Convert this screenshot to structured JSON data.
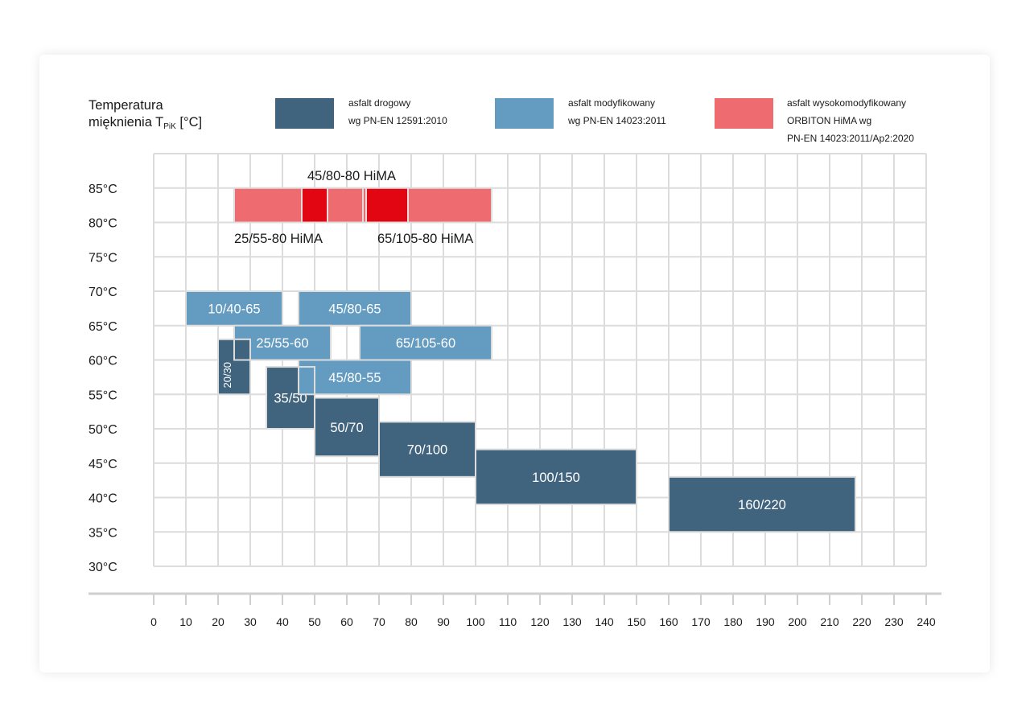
{
  "y_title": {
    "line1": "Temperatura",
    "line2_prefix": "mięknienia T",
    "line2_sub": "PiK",
    "line2_suffix": " [°C]"
  },
  "legend": [
    {
      "color": "#41647e",
      "lines": [
        "asfalt drogowy",
        "wg PN-EN 12591:2010"
      ]
    },
    {
      "color": "#649cc1",
      "lines": [
        "asfalt modyfikowany",
        "wg PN-EN 14023:2011"
      ]
    },
    {
      "color": "#ee6b70",
      "lines": [
        "asfalt wysokomodyfikowany",
        "ORBITON HiMA wg",
        "PN-EN 14023:2011/Ap2:2020"
      ]
    }
  ],
  "chart_data": {
    "type": "range-box",
    "x_ticks": [
      0,
      10,
      20,
      30,
      40,
      50,
      60,
      70,
      80,
      90,
      100,
      110,
      120,
      130,
      140,
      150,
      160,
      170,
      180,
      190,
      200,
      210,
      220,
      230,
      240
    ],
    "y_ticks": [
      "30°C",
      "35°C",
      "40°C",
      "45°C",
      "50°C",
      "55°C",
      "60°C",
      "65°C",
      "70°C",
      "75°C",
      "80°C",
      "85°C"
    ],
    "xlim": [
      0,
      240
    ],
    "ylim": [
      30,
      90
    ],
    "grid": true,
    "boxes": [
      {
        "label": "25/55-80 HiMA (zakres)",
        "text": "",
        "x": [
          25,
          105
        ],
        "y": [
          80,
          85
        ],
        "fill": "#ee6b70"
      },
      {
        "label": "45/80-80 HiMA",
        "text": "",
        "x": [
          46,
          54
        ],
        "y": [
          80,
          85
        ],
        "fill": "#e20613"
      },
      {
        "label": "",
        "text": "",
        "x": [
          54,
          65
        ],
        "y": [
          80,
          85
        ],
        "fill": "#ee6b70"
      },
      {
        "label": "65/105-80 HiMA",
        "text": "",
        "x": [
          66,
          79
        ],
        "y": [
          80,
          85
        ],
        "fill": "#e20613"
      },
      {
        "label": "10/40-65",
        "text": "10/40-65",
        "x": [
          10,
          40
        ],
        "y": [
          65,
          70
        ],
        "fill": "#649cc1"
      },
      {
        "label": "45/80-65",
        "text": "45/80-65",
        "x": [
          45,
          80
        ],
        "y": [
          65,
          70
        ],
        "fill": "#649cc1"
      },
      {
        "label": "25/55-60",
        "text": "25/55-60",
        "x": [
          25,
          55
        ],
        "y": [
          60,
          65
        ],
        "fill": "#649cc1"
      },
      {
        "label": "65/105-60",
        "text": "65/105-60",
        "x": [
          64,
          105
        ],
        "y": [
          60,
          65
        ],
        "fill": "#649cc1"
      },
      {
        "label": "20/30",
        "text": "20/30",
        "x": [
          20,
          30
        ],
        "y": [
          55,
          63
        ],
        "fill": "#41647e",
        "rotated": true
      },
      {
        "label": "20/30 (part)",
        "text": "",
        "x": [
          25,
          30
        ],
        "y": [
          60,
          63
        ],
        "fill": "#41647e"
      },
      {
        "label": "45/80-55",
        "text": "45/80-55",
        "x": [
          45,
          80
        ],
        "y": [
          55,
          60
        ],
        "fill": "#649cc1"
      },
      {
        "label": "35/50",
        "text": "35/50",
        "x": [
          35,
          50
        ],
        "y": [
          50,
          59
        ],
        "fill": "#41647e"
      },
      {
        "label": "45/80-55 (part)",
        "text": "",
        "x": [
          45,
          50
        ],
        "y": [
          55,
          59
        ],
        "fill": "#649cc1"
      },
      {
        "label": "50/70",
        "text": "50/70",
        "x": [
          50,
          70
        ],
        "y": [
          46,
          54.5
        ],
        "fill": "#41647e"
      },
      {
        "label": "70/100",
        "text": "70/100",
        "x": [
          70,
          100
        ],
        "y": [
          43,
          51
        ],
        "fill": "#41647e"
      },
      {
        "label": "100/150",
        "text": "100/150",
        "x": [
          100,
          150
        ],
        "y": [
          39,
          47
        ],
        "fill": "#41647e"
      },
      {
        "label": "160/220",
        "text": "160/220",
        "x": [
          160,
          218
        ],
        "y": [
          35,
          43
        ],
        "fill": "#41647e"
      }
    ],
    "annotations": [
      "45/80-80 HiMA",
      "25/55-80 HiMA",
      "65/105-80 HiMA"
    ]
  }
}
